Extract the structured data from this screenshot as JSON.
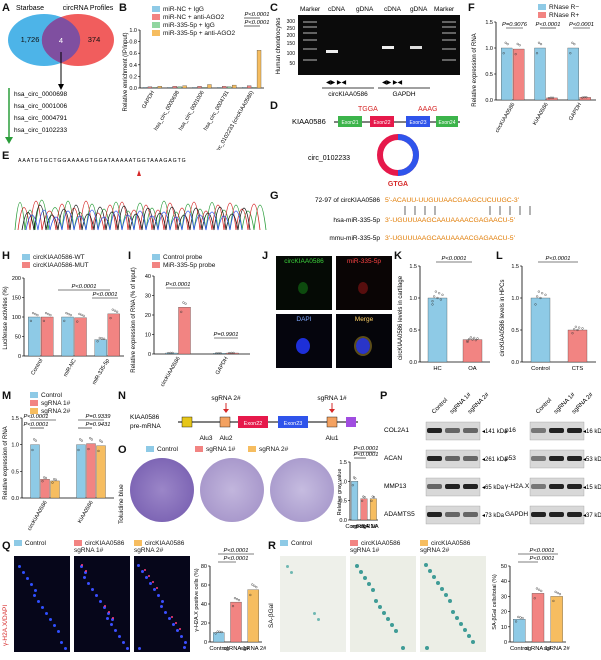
{
  "colors": {
    "blue": "#8ecae6",
    "red": "#f28482",
    "green": "#90d6a0",
    "orange": "#f6bd60",
    "venn_blue": "#4db4e8",
    "venn_red": "#ef4b4b",
    "venn_overlap": "#7f4fa0"
  },
  "panelA": {
    "label": "A",
    "venn": {
      "left_title": "Starbase",
      "right_title": "circRNA Profiles",
      "left_count": "1,726",
      "overlap_count": "4",
      "right_count": "374"
    },
    "circs": [
      "hsa_circ_0000698",
      "hsa_circ_0001006",
      "hsa_circ_0004791",
      "hsa_circ_0102233"
    ]
  },
  "panelB": {
    "label": "B",
    "ylabel": "Relative enrichment (IP/input)",
    "legend": [
      "miR-NC + IgG",
      "miR-NC + anti-AGO2",
      "miR-335-5p + IgG",
      "miR-335-5p + anti-AGO2"
    ],
    "pvals": [
      "P<0.0001",
      "P<0.0001"
    ],
    "chart_data": {
      "type": "bar",
      "categories": [
        "GAPDH",
        "hsa_circ_0000698",
        "hsa_circ_0001006",
        "hsa_circ_0004791",
        "hsa_circ_0102233 (circKIAA0586)"
      ],
      "series": [
        {
          "name": "miR-NC + IgG",
          "values": [
            0.01,
            0.01,
            0.01,
            0.01,
            0.01
          ]
        },
        {
          "name": "miR-NC + anti-AGO2",
          "values": [
            0.02,
            0.03,
            0.03,
            0.03,
            0.04
          ]
        },
        {
          "name": "miR-335-5p + IgG",
          "values": [
            0.01,
            0.02,
            0.01,
            0.02,
            0.01
          ]
        },
        {
          "name": "miR-335-5p + anti-AGO2",
          "values": [
            0.03,
            0.04,
            0.06,
            0.05,
            0.65
          ]
        }
      ],
      "ylim": [
        0,
        1
      ],
      "yticks": [
        "0.0",
        "0.2",
        "0.4",
        "0.6",
        "0.8",
        "1.0"
      ]
    }
  },
  "panelC": {
    "label": "C",
    "marker": "Marker",
    "cdna": "cDNA",
    "gdna": "gDNA",
    "ylabel": "Human chondrocytes",
    "groups": [
      "circKIAA0586",
      "GAPDH"
    ],
    "ladder": [
      "300",
      "250",
      "200",
      "150",
      "100",
      "50"
    ]
  },
  "panelD": {
    "label": "D",
    "gene": "KIAA0586",
    "exons": [
      "Exon21",
      "Exon22",
      "Exon23",
      "Exon24"
    ],
    "seq_left": "TGGA",
    "seq_right": "AAAG",
    "junction": "GTGA",
    "circ": "circ_0102233"
  },
  "panelE": {
    "label": "E",
    "sequence": "AAATGTGCTGGAAAAGTGGATAAAAATGGTAAAGAGTG"
  },
  "panelF": {
    "label": "F",
    "ylabel": "Relative expression of RNA",
    "legend": [
      "RNase R−",
      "RNase R+"
    ],
    "pvals": [
      "P=0.9076",
      "P<0.0001",
      "P<0.0001"
    ],
    "chart_data": {
      "type": "bar",
      "categories": [
        "circKIAA0586",
        "KIAA0586",
        "GAPDH"
      ],
      "series": [
        {
          "name": "RNase R−",
          "values": [
            1.0,
            1.0,
            1.0
          ]
        },
        {
          "name": "RNase R+",
          "values": [
            0.98,
            0.04,
            0.05
          ]
        }
      ],
      "ylim": [
        0,
        1.5
      ],
      "yticks": [
        "0.0",
        "0.5",
        "1.0",
        "1.5"
      ]
    }
  },
  "panelG": {
    "label": "G",
    "rows": [
      {
        "name": "72-97 of circKIAA0586",
        "seq": "5'-ACAUU-UUGUUAACGAAGCUCUUGC-3'"
      },
      {
        "name": "hsa-miR-335-5p",
        "seq": "3'-UGUUUAAGCAAUAAAACGAGAACU-5'"
      },
      {
        "name": "mmu-miR-335-5p",
        "seq": "3'-UGUUUAAGCAAUAAAACGAGAACU-5'"
      }
    ]
  },
  "panelH": {
    "label": "H",
    "ylabel": "Luciferase activities (%)",
    "legend": [
      "circKIAA0586-WT",
      "circKIAA0586-MUT"
    ],
    "pvals": [
      "P<0.0001",
      "P<0.0001"
    ],
    "chart_data": {
      "type": "bar",
      "categories": [
        "Control",
        "miR-NC",
        "miR-335-5p"
      ],
      "series": [
        {
          "name": "circKIAA0586-WT",
          "values": [
            100,
            100,
            42
          ]
        },
        {
          "name": "circKIAA0586-MUT",
          "values": [
            100,
            98,
            108
          ]
        }
      ],
      "ylim": [
        0,
        200
      ],
      "yticks": [
        "0",
        "50",
        "100",
        "150",
        "200"
      ]
    }
  },
  "panelI": {
    "label": "I",
    "ylabel": "Relative expression of RNA (% of input)",
    "legend": [
      "Control probe",
      "MiR-335-5p probe"
    ],
    "pvals": [
      "P<0.0001",
      "P=0.9901"
    ],
    "chart_data": {
      "type": "bar",
      "categories": [
        "circKIAA0586",
        "GAPDH"
      ],
      "series": [
        {
          "name": "Control probe",
          "values": [
            0.5,
            0.4
          ]
        },
        {
          "name": "MiR-335-5p probe",
          "values": [
            24,
            0.5
          ]
        }
      ],
      "ylim": [
        0,
        40
      ],
      "yticks": [
        "0",
        "10",
        "20",
        "30",
        "40"
      ]
    }
  },
  "panelJ": {
    "label": "J",
    "titles": [
      "circKIAA0586",
      "miR-335-5p",
      "DAPI",
      "Merge"
    ]
  },
  "panelK": {
    "label": "K",
    "ylabel": "circKIAA0586 levels in cartilage",
    "pval": "P<0.0001",
    "chart_data": {
      "type": "bar",
      "categories": [
        "HC",
        "OA"
      ],
      "values": [
        1.0,
        0.35
      ],
      "ylim": [
        0,
        1.5
      ],
      "yticks": [
        "0.0",
        "0.5",
        "1.0",
        "1.5"
      ]
    }
  },
  "panelL": {
    "label": "L",
    "ylabel": "circKIAA0586 levels in HPCs",
    "pval": "P<0.0001",
    "chart_data": {
      "type": "bar",
      "categories": [
        "Control",
        "CTS"
      ],
      "values": [
        1.0,
        0.5
      ],
      "ylim": [
        0,
        1.5
      ],
      "yticks": [
        "0.0",
        "0.5",
        "1.0",
        "1.5"
      ]
    }
  },
  "panelM": {
    "label": "M",
    "ylabel": "Relative expression of RNA",
    "legend": [
      "Control",
      "sgRNA 1#",
      "sgRNA 2#"
    ],
    "pvals": [
      "P<0.0001",
      "P<0.0001",
      "P=0.9431",
      "P=0.9339"
    ],
    "chart_data": {
      "type": "bar",
      "categories": [
        "circKIAA0586",
        "KIAA0586"
      ],
      "series": [
        {
          "name": "Control",
          "values": [
            1.0,
            1.0
          ]
        },
        {
          "name": "sgRNA 1#",
          "values": [
            0.35,
            1.02
          ]
        },
        {
          "name": "sgRNA 2#",
          "values": [
            0.32,
            0.98
          ]
        }
      ],
      "ylim": [
        0,
        1.5
      ],
      "yticks": [
        "0.0",
        "0.5",
        "1.0",
        "1.5"
      ]
    }
  },
  "panelN": {
    "label": "N",
    "gene": "KIAA0586",
    "sub": "pre-mRNA",
    "sg2": "sgRNA 2#",
    "sg1": "sgRNA 1#",
    "exons": [
      "Exon22",
      "Exon23"
    ],
    "alus": [
      "Alu3",
      "Alu2",
      "Alu1"
    ]
  },
  "panelO": {
    "label": "O",
    "ylabel": "Toluidine blue",
    "legend": [
      "Control",
      "sgRNA 1#",
      "sgRNA 2#"
    ],
    "bar_ylabel": "Relative gray value",
    "pvals": [
      "P<0.0001",
      "P<0.0001"
    ],
    "chart_data": {
      "type": "bar",
      "categories": [
        "Control",
        "sgRNA 1#",
        "sgRNA 2#"
      ],
      "values": [
        1.0,
        0.55,
        0.55
      ],
      "ylim": [
        0,
        1.5
      ],
      "yticks": [
        "0.0",
        "0.5",
        "1.0",
        "1.5"
      ]
    }
  },
  "panelP": {
    "label": "P",
    "cols": [
      "Control",
      "sgRNA 1#",
      "sgRNA 2#"
    ],
    "left": [
      {
        "name": "COL2A1",
        "kda": "141 kDa"
      },
      {
        "name": "ACAN",
        "kda": "261 kDa"
      },
      {
        "name": "MMP13",
        "kda": "65 kDa"
      },
      {
        "name": "ADAMTS5",
        "kda": "73 kDa"
      }
    ],
    "right": [
      {
        "name": "p16",
        "kda": "16 kDa"
      },
      {
        "name": "p53",
        "kda": "53 kDa"
      },
      {
        "name": "γ-H2A.X",
        "kda": "15 kDa"
      },
      {
        "name": "GAPDH",
        "kda": "37 kDa"
      }
    ]
  },
  "panelQ": {
    "label": "Q",
    "ylabel": "γ-H2A.X/DAPI",
    "titles": [
      "Control",
      "circKIAA0586 sgRNA 1#",
      "circKIAA0586 sgRNA 2#"
    ],
    "bar_ylabel": "γ-H2A.X positive cells (%)",
    "pvals": [
      "P<0.0001",
      "P<0.0001"
    ],
    "chart_data": {
      "type": "bar",
      "categories": [
        "Control",
        "sgRNA 1#",
        "sgRNA 2#"
      ],
      "values": [
        10,
        42,
        55
      ],
      "ylim": [
        0,
        80
      ],
      "yticks": [
        "0",
        "20",
        "40",
        "60",
        "80"
      ]
    }
  },
  "panelR": {
    "label": "R",
    "ylabel": "SA-βGal",
    "titles": [
      "Control",
      "circKIAA0586 sgRNA 1#",
      "circKIAA0586 sgRNA 2#"
    ],
    "bar_ylabel": "SA-βGal cells/total (%)",
    "pvals": [
      "P<0.0001",
      "P<0.0001"
    ],
    "chart_data": {
      "type": "bar",
      "categories": [
        "Control",
        "sgRNA 1#",
        "sgRNA 2#"
      ],
      "values": [
        15,
        32,
        30
      ],
      "ylim": [
        0,
        50
      ],
      "yticks": [
        "0",
        "10",
        "20",
        "30",
        "40",
        "50"
      ]
    }
  }
}
